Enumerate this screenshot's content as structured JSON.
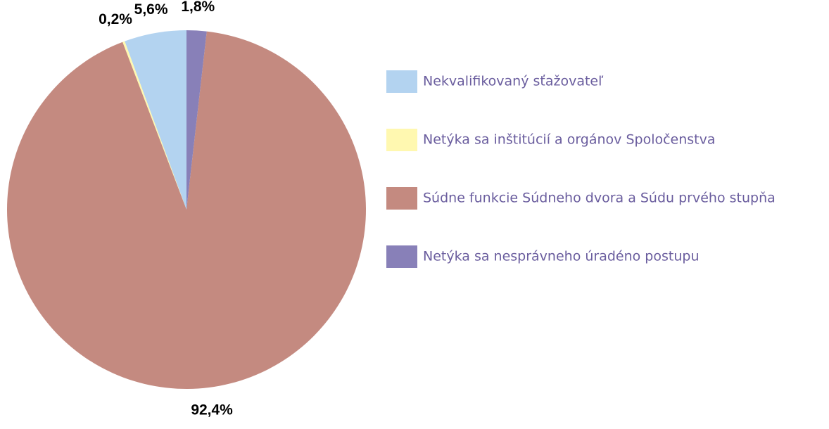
{
  "chart_data": {
    "type": "pie",
    "direction": "counterclockwise",
    "categories": [
      "Nekvalifikovaný sťažovateľ",
      "Netýka sa inštitúcií a orgánov Spoločenstva",
      "Súdne funkcie Súdneho dvora a Súdu prvého stupňa",
      "Netýka sa nesprávneho úradéno postupu"
    ],
    "values": [
      5.6,
      0.2,
      92.4,
      1.8
    ],
    "value_labels": [
      "5,6%",
      "0,2%",
      "92,4%",
      "1,8%"
    ],
    "colors": [
      "#b3d3f0",
      "#fff8b0",
      "#c48a80",
      "#8880b8"
    ],
    "legend": "right"
  }
}
